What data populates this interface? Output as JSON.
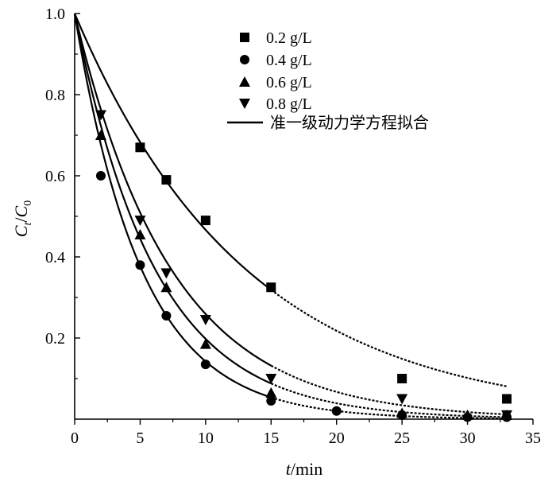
{
  "chart_data": {
    "type": "scatter",
    "xlabel": {
      "var": "t",
      "unit": "/min"
    },
    "ylabel": {
      "var": "C",
      "sub1": "t",
      "sep": "/",
      "var2": "C",
      "sub2": "0"
    },
    "xlim": [
      0,
      35
    ],
    "ylim": [
      0,
      1.0
    ],
    "xticks": [
      0,
      5,
      10,
      15,
      20,
      25,
      30,
      35
    ],
    "xtick_labels": [
      "0",
      "5",
      "10",
      "15",
      "20",
      "25",
      "30",
      "35"
    ],
    "yticks": [
      0.2,
      0.4,
      0.6,
      0.8,
      1.0
    ],
    "ytick_labels": [
      "0.2",
      "0.4",
      "0.6",
      "0.8",
      "1.0"
    ],
    "grid": false,
    "legend_position": "top-center",
    "fit_legend_label": "准一级动力学方程拟合",
    "series": [
      {
        "name": "0.2 g/L",
        "marker": "square",
        "x": [
          0,
          5,
          7,
          10,
          15,
          25,
          33
        ],
        "y": [
          1.0,
          0.67,
          0.59,
          0.49,
          0.325,
          0.1,
          0.05
        ],
        "fit_k": 0.0762
      },
      {
        "name": "0.4 g/L",
        "marker": "circle",
        "x": [
          0,
          2,
          5,
          7,
          10,
          15,
          20,
          25,
          30,
          33
        ],
        "y": [
          1.0,
          0.6,
          0.38,
          0.255,
          0.135,
          0.045,
          0.02,
          0.01,
          0.005,
          0.005
        ],
        "fit_k": 0.195
      },
      {
        "name": "0.6 g/L",
        "marker": "triangle-up",
        "x": [
          0,
          2,
          5,
          7,
          10,
          15,
          25,
          30,
          33
        ],
        "y": [
          1.0,
          0.7,
          0.455,
          0.325,
          0.185,
          0.065,
          0.015,
          0.01,
          0.01
        ],
        "fit_k": 0.162
      },
      {
        "name": "0.8 g/L",
        "marker": "triangle-down",
        "x": [
          0,
          2,
          5,
          7,
          10,
          15,
          25,
          33
        ],
        "y": [
          1.0,
          0.75,
          0.49,
          0.36,
          0.245,
          0.1,
          0.05,
          0.01
        ],
        "fit_k": 0.135
      }
    ]
  }
}
